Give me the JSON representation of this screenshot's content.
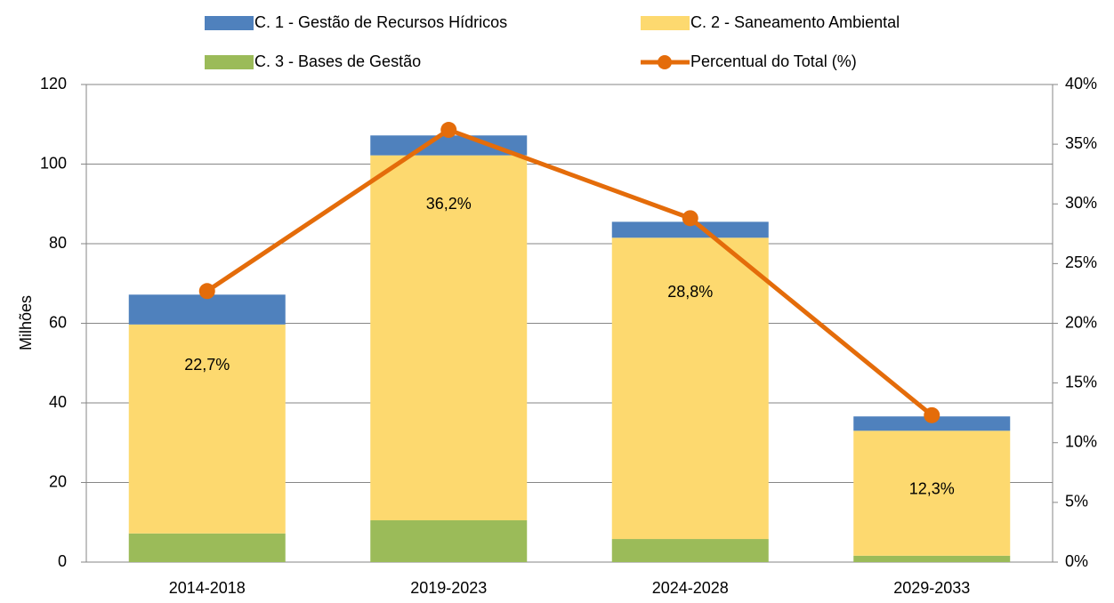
{
  "chart_data": {
    "type": "stacked-bar-line",
    "y_label": "Milhões",
    "categories": [
      "2014-2018",
      "2019-2023",
      "2024-2028",
      "2029-2033"
    ],
    "series": [
      {
        "name": "C. 1 - Gestão de Recursos Hídricos",
        "color": "#4f81bd",
        "values": [
          7.5,
          5.0,
          4.0,
          3.6
        ]
      },
      {
        "name": "C. 2 - Saneamento Ambiental",
        "color": "#fdd96f",
        "values": [
          52.5,
          91.7,
          75.7,
          31.4
        ]
      },
      {
        "name": "C. 3 - Bases de Gestão",
        "color": "#9bbb59",
        "values": [
          7.2,
          10.5,
          5.8,
          1.6
        ]
      },
      {
        "name": "Percentual do Total (%)",
        "color": "#e46c0a",
        "axis": "y2",
        "values": [
          22.7,
          36.2,
          28.8,
          12.3
        ],
        "value_labels": [
          "22,7%",
          "36,2%",
          "28,8%",
          "12,3%"
        ]
      }
    ],
    "ylim": [
      0,
      120
    ],
    "yticks": [
      0,
      20,
      40,
      60,
      80,
      100,
      120
    ],
    "y2lim": [
      0,
      40
    ],
    "y2ticks": [
      {
        "value": 0,
        "label": "0%"
      },
      {
        "value": 5,
        "label": "5%"
      },
      {
        "value": 10,
        "label": "10%"
      },
      {
        "value": 15,
        "label": "15%"
      },
      {
        "value": 20,
        "label": "20%"
      },
      {
        "value": 25,
        "label": "25%"
      },
      {
        "value": 30,
        "label": "30%"
      },
      {
        "value": 35,
        "label": "35%"
      },
      {
        "value": 40,
        "label": "40%"
      }
    ],
    "grid": true
  }
}
